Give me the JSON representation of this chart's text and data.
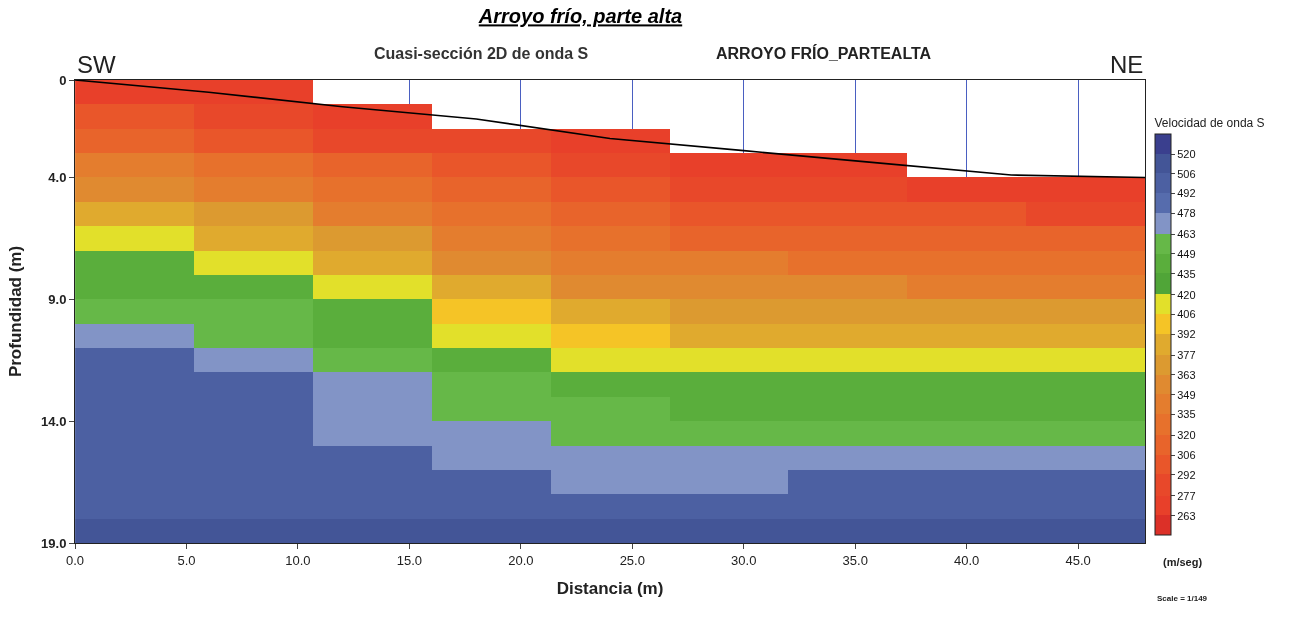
{
  "chart_data": {
    "type": "heatmap",
    "title": "Arroyo frío, parte alta",
    "subtitle": "Cuasi-sección 2D de onda S",
    "xlabel": "Distancia (m)",
    "ylabel": "Profundidad (m)",
    "clabel": "Velocidad de onda S",
    "annotations": [
      "ARROYO FRÍO_PARTEALTA",
      "SW",
      "NE",
      "(m/seg)",
      "Scale = 1/149"
    ],
    "x": [
      2.67,
      8,
      13.33,
      18.67,
      24,
      29.33,
      34.67,
      40,
      45.33
    ],
    "y": [
      0.5,
      1.5,
      2.5,
      3.5,
      4.5,
      5.5,
      6.5,
      7.5,
      8.5,
      9.5,
      10.5,
      11.5,
      12.5,
      13.5,
      14.5,
      15.5,
      16.5,
      17.5,
      18.5
    ],
    "cells": [
      [
        270,
        270,
        null,
        null,
        null,
        null,
        null,
        null,
        null
      ],
      [
        299,
        285,
        270,
        null,
        null,
        null,
        null,
        null,
        null
      ],
      [
        313,
        299,
        285,
        285,
        270,
        null,
        null,
        null,
        null
      ],
      [
        342,
        328,
        313,
        299,
        285,
        270,
        270,
        null,
        null
      ],
      [
        356,
        342,
        328,
        313,
        299,
        285,
        285,
        270,
        270
      ],
      [
        385,
        370,
        342,
        328,
        313,
        299,
        299,
        299,
        285
      ],
      [
        413,
        385,
        370,
        342,
        328,
        313,
        313,
        313,
        313
      ],
      [
        442,
        413,
        385,
        356,
        342,
        342,
        328,
        328,
        328
      ],
      [
        442,
        442,
        413,
        385,
        356,
        356,
        356,
        342,
        342
      ],
      [
        456,
        456,
        442,
        399,
        385,
        370,
        370,
        370,
        370
      ],
      [
        470,
        456,
        442,
        413,
        399,
        385,
        385,
        385,
        385
      ],
      [
        499,
        470,
        456,
        442,
        413,
        413,
        413,
        413,
        413
      ],
      [
        499,
        499,
        470,
        456,
        442,
        442,
        442,
        442,
        442
      ],
      [
        499,
        499,
        470,
        456,
        456,
        442,
        442,
        442,
        442
      ],
      [
        499,
        499,
        470,
        470,
        456,
        456,
        456,
        456,
        456
      ],
      [
        499,
        499,
        499,
        470,
        470,
        470,
        470,
        470,
        470
      ],
      [
        499,
        499,
        499,
        499,
        470,
        470,
        499,
        499,
        499
      ],
      [
        499,
        499,
        499,
        499,
        499,
        499,
        499,
        499,
        499
      ],
      [
        513,
        513,
        513,
        513,
        513,
        513,
        513,
        513,
        513
      ]
    ],
    "colors": [
      "#dc3028",
      "#e8402a",
      "#e8482a",
      "#e9562a",
      "#e8642b",
      "#e7712c",
      "#e47d2e",
      "#e08a30",
      "#dc9a30",
      "#e0aa2e",
      "#f5c426",
      "#e2e02a",
      "#50a538",
      "#5aae3c",
      "#66b848",
      "#8294c6",
      "#566cad",
      "#4c60a2",
      "#435597",
      "#3a3f8e"
    ],
    "clim": [
      249,
      534
    ],
    "cticks": [
      263,
      277,
      292,
      306,
      320,
      335,
      349,
      363,
      377,
      392,
      406,
      420,
      435,
      449,
      463,
      478,
      492,
      506,
      520
    ],
    "series": [
      {
        "type": "line",
        "color": "#000000",
        "x": [
          0,
          6,
          12,
          18,
          24,
          30,
          36,
          42,
          48
        ],
        "values": [
          0,
          0.5,
          1.1,
          1.6,
          2.4,
          2.9,
          3.4,
          3.9,
          4.0
        ]
      }
    ],
    "xlim": [
      0,
      48
    ],
    "xticks": [
      {
        "value": 0,
        "label": "0.0"
      },
      {
        "value": 5,
        "label": "5.0"
      },
      {
        "value": 10,
        "label": "10.0"
      },
      {
        "value": 15,
        "label": "15.0"
      },
      {
        "value": 20,
        "label": "20.0"
      },
      {
        "value": 25,
        "label": "25.0"
      },
      {
        "value": 30,
        "label": "30.0"
      },
      {
        "value": 35,
        "label": "35.0"
      },
      {
        "value": 40,
        "label": "40.0"
      },
      {
        "value": 45,
        "label": "45.0"
      }
    ],
    "ylim": [
      19,
      0
    ],
    "yticks": [
      0,
      {
        "value": 4,
        "label": "4.0"
      },
      {
        "value": 9,
        "label": "9.0"
      },
      {
        "value": 14,
        "label": "14.0"
      },
      {
        "value": 19,
        "label": "19.0"
      }
    ],
    "grid": "x"
  }
}
